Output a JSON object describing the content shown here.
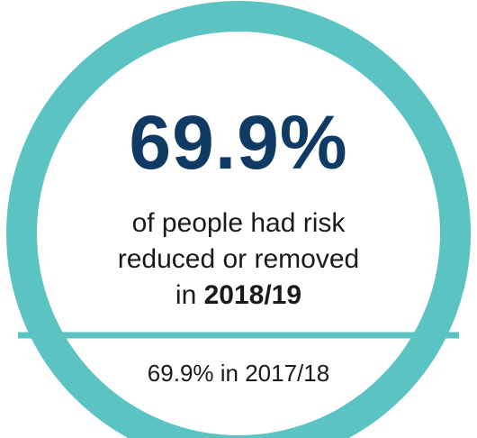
{
  "stat": {
    "value": "69.9%",
    "line1": "of people had risk",
    "line2": "reduced or removed",
    "line3_prefix": "in ",
    "line3_year": "2018/19"
  },
  "comparison": {
    "text": "69.9% in 2017/18"
  },
  "colors": {
    "ring": "#5bc3c1",
    "headline": "#0f3a63",
    "text": "#1a1a1a",
    "background": "#ffffff"
  }
}
